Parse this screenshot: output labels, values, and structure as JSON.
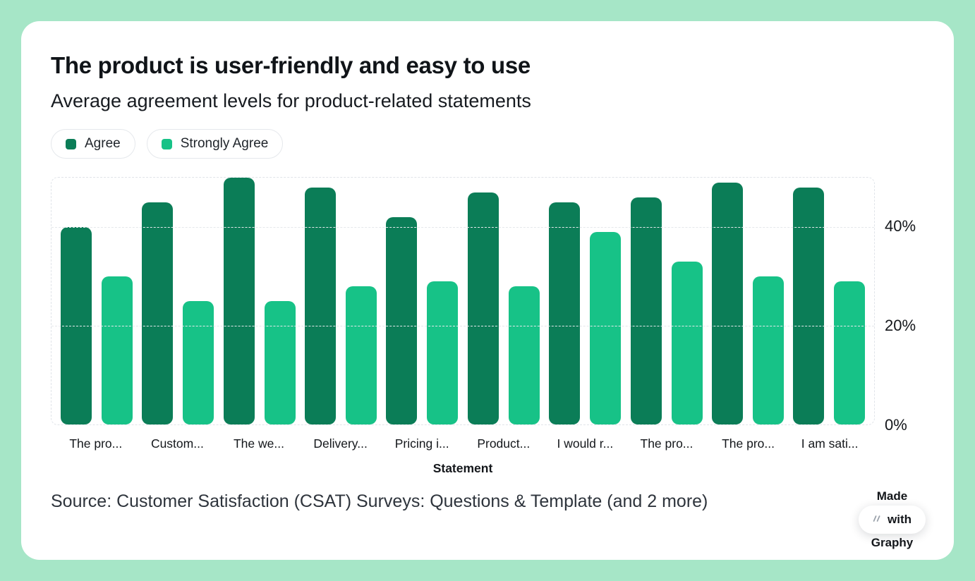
{
  "colors": {
    "background_mint": "#a6e6c7",
    "card": "#ffffff",
    "agree_green": "#0b7d57",
    "strongly_agree_green": "#17c287",
    "grid": "#e4e7eb"
  },
  "chart_data": {
    "type": "bar",
    "title": "The product is user-friendly and easy to use",
    "subtitle": "Average agreement levels for product-related statements",
    "categories": [
      "The pro...",
      "Custom...",
      "The we...",
      "Delivery...",
      "Pricing i...",
      "Product...",
      "I would r...",
      "The pro...",
      "The pro...",
      "I am sati..."
    ],
    "series": [
      {
        "name": "Agree",
        "color": "#0b7d57",
        "values": [
          40,
          45,
          50,
          48,
          42,
          47,
          45,
          46,
          49,
          48
        ]
      },
      {
        "name": "Strongly Agree",
        "color": "#17c287",
        "values": [
          30,
          25,
          25,
          28,
          29,
          28,
          39,
          33,
          30,
          29
        ]
      }
    ],
    "xlabel": "Statement",
    "ylabel": "",
    "ylim": [
      0,
      50
    ],
    "yticks": [
      {
        "value": 0,
        "label": "0%"
      },
      {
        "value": 20,
        "label": "20%"
      },
      {
        "value": 40,
        "label": "40%"
      }
    ],
    "grid": "dashed horizontal",
    "legend_position": "top-left",
    "value_axis_side": "right"
  },
  "footer": {
    "source": "Source: Customer Satisfaction (CSAT) Surveys: Questions & Template (and 2 more)"
  },
  "badge": {
    "made": "Made",
    "with": "with",
    "brand": "Graphy"
  }
}
